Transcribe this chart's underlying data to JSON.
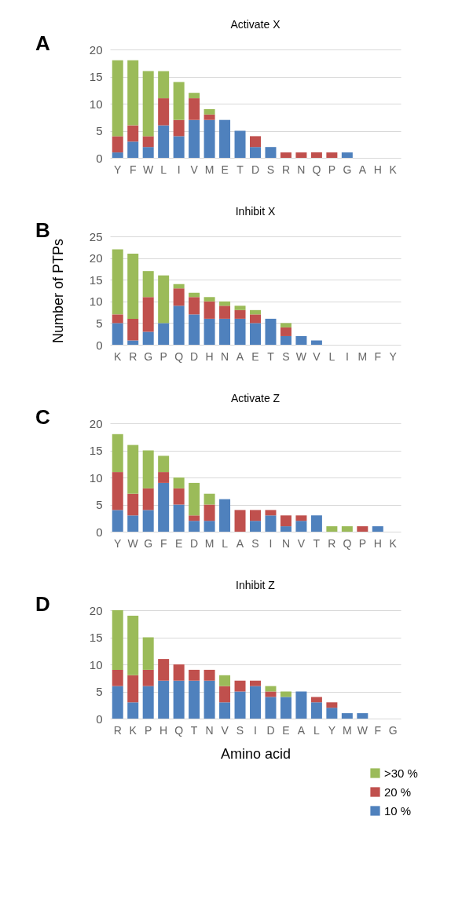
{
  "chart_data": [
    {
      "type": "bar",
      "title": "Activate X",
      "annotations": [
        "A"
      ],
      "stacked": true,
      "grid": "y",
      "legend": false,
      "categories": [
        "Y",
        "F",
        "W",
        "L",
        "I",
        "V",
        "M",
        "E",
        "T",
        "D",
        "S",
        "R",
        "N",
        "Q",
        "P",
        "G",
        "A",
        "H",
        "K"
      ],
      "ylim": [
        0,
        20
      ],
      "yticks": [
        0,
        5,
        10,
        15,
        20
      ],
      "series": [
        {
          "color": "#4f81bd",
          "values": [
            1,
            3,
            2,
            6,
            4,
            7,
            7,
            7,
            5,
            2,
            2,
            0,
            0,
            0,
            0,
            1,
            0,
            0,
            0
          ]
        },
        {
          "color": "#c0504d",
          "values": [
            3,
            3,
            2,
            5,
            3,
            4,
            1,
            0,
            0,
            2,
            0,
            1,
            1,
            1,
            1,
            0,
            0,
            0,
            0
          ]
        },
        {
          "color": "#9bbb59",
          "values": [
            14,
            12,
            12,
            5,
            7,
            1,
            1,
            0,
            0,
            0,
            0,
            0,
            0,
            0,
            0,
            0,
            0,
            0,
            0
          ]
        }
      ]
    },
    {
      "type": "bar",
      "title": "Inhibit X",
      "annotations": [
        "B"
      ],
      "stacked": true,
      "grid": "y",
      "legend": false,
      "ylabel": "Number of PTPs",
      "categories": [
        "K",
        "R",
        "G",
        "P",
        "Q",
        "D",
        "H",
        "N",
        "A",
        "E",
        "T",
        "S",
        "W",
        "V",
        "L",
        "I",
        "M",
        "F",
        "Y"
      ],
      "ylim": [
        0,
        25
      ],
      "yticks": [
        0,
        5,
        10,
        15,
        20,
        25
      ],
      "series": [
        {
          "color": "#4f81bd",
          "values": [
            5,
            1,
            3,
            5,
            9,
            7,
            6,
            6,
            6,
            5,
            6,
            2,
            2,
            1,
            0,
            0,
            0,
            0,
            0
          ]
        },
        {
          "color": "#c0504d",
          "values": [
            2,
            5,
            8,
            0,
            4,
            4,
            4,
            3,
            2,
            2,
            0,
            2,
            0,
            0,
            0,
            0,
            0,
            0,
            0
          ]
        },
        {
          "color": "#9bbb59",
          "values": [
            15,
            15,
            6,
            11,
            1,
            1,
            1,
            1,
            1,
            1,
            0,
            1,
            0,
            0,
            0,
            0,
            0,
            0,
            0
          ]
        }
      ]
    },
    {
      "type": "bar",
      "title": "Activate Z",
      "annotations": [
        "C"
      ],
      "stacked": true,
      "grid": "y",
      "legend": false,
      "categories": [
        "Y",
        "W",
        "G",
        "F",
        "E",
        "D",
        "M",
        "L",
        "A",
        "S",
        "I",
        "N",
        "V",
        "T",
        "R",
        "Q",
        "P",
        "H",
        "K"
      ],
      "ylim": [
        0,
        20
      ],
      "yticks": [
        0,
        5,
        10,
        15,
        20
      ],
      "series": [
        {
          "color": "#4f81bd",
          "values": [
            4,
            3,
            4,
            9,
            5,
            2,
            2,
            6,
            0,
            2,
            3,
            1,
            2,
            3,
            0,
            0,
            0,
            1,
            0
          ]
        },
        {
          "color": "#c0504d",
          "values": [
            7,
            4,
            4,
            2,
            3,
            1,
            3,
            0,
            4,
            2,
            1,
            2,
            1,
            0,
            0,
            0,
            1,
            0,
            0
          ]
        },
        {
          "color": "#9bbb59",
          "values": [
            7,
            9,
            7,
            3,
            2,
            6,
            2,
            0,
            0,
            0,
            0,
            0,
            0,
            0,
            1,
            1,
            0,
            0,
            0
          ]
        }
      ]
    },
    {
      "type": "bar",
      "title": "Inhibit Z",
      "annotations": [
        "D"
      ],
      "stacked": true,
      "grid": "y",
      "legend": "bottom right",
      "xlabel": "Amino acid",
      "categories": [
        "R",
        "K",
        "P",
        "H",
        "Q",
        "T",
        "N",
        "V",
        "S",
        "I",
        "D",
        "E",
        "A",
        "L",
        "Y",
        "M",
        "W",
        "F",
        "G"
      ],
      "ylim": [
        0,
        20
      ],
      "yticks": [
        0,
        5,
        10,
        15,
        20
      ],
      "series": [
        {
          "name": "10 %",
          "color": "#4f81bd",
          "values": [
            6,
            3,
            6,
            7,
            7,
            7,
            7,
            3,
            5,
            6,
            4,
            4,
            5,
            3,
            2,
            1,
            1,
            0,
            0
          ]
        },
        {
          "name": "20 %",
          "color": "#c0504d",
          "values": [
            3,
            5,
            3,
            4,
            3,
            2,
            2,
            3,
            2,
            1,
            1,
            0,
            0,
            1,
            1,
            0,
            0,
            0,
            0
          ]
        },
        {
          "name": ">30 %",
          "color": "#9bbb59",
          "values": [
            11,
            11,
            6,
            0,
            0,
            0,
            0,
            2,
            0,
            0,
            1,
            1,
            0,
            0,
            0,
            0,
            0,
            0,
            0
          ]
        }
      ]
    }
  ]
}
